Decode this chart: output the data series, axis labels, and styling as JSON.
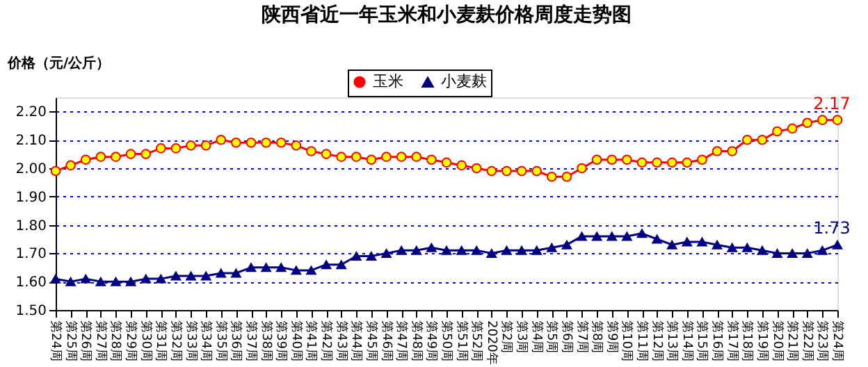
{
  "chart_data": {
    "type": "line",
    "title": "陕西省近一年玉米和小麦麸价格周度走势图",
    "ylabel": "价格（元/公斤）",
    "categories": [
      "第24周",
      "第25周",
      "第26周",
      "第27周",
      "第28周",
      "第29周",
      "第30周",
      "第31周",
      "第32周",
      "第33周",
      "第34周",
      "第35周",
      "第36周",
      "第37周",
      "第38周",
      "第39周",
      "第40周",
      "第41周",
      "第42周",
      "第43周",
      "第44周",
      "第45周",
      "第46周",
      "第47周",
      "第48周",
      "第49周",
      "第50周",
      "第51周",
      "第52周",
      "2020年",
      "第2周",
      "第3周",
      "第4周",
      "第5周",
      "第6周",
      "第7周",
      "第8周",
      "第9周",
      "第10周",
      "第11周",
      "第12周",
      "第13周",
      "第14周",
      "第15周",
      "第16周",
      "第17周",
      "第18周",
      "第19周",
      "第20周",
      "第21周",
      "第22周",
      "第23周",
      "第24周 "
    ],
    "series": [
      {
        "name": "玉米",
        "color": "#ff0000",
        "marker": "circle",
        "values": [
          1.99,
          2.01,
          2.03,
          2.04,
          2.04,
          2.05,
          2.05,
          2.07,
          2.07,
          2.08,
          2.08,
          2.1,
          2.09,
          2.09,
          2.09,
          2.09,
          2.08,
          2.06,
          2.05,
          2.04,
          2.04,
          2.03,
          2.04,
          2.04,
          2.04,
          2.03,
          2.02,
          2.01,
          2.0,
          1.99,
          1.99,
          1.99,
          1.99,
          1.97,
          1.97,
          2.0,
          2.03,
          2.03,
          2.03,
          2.02,
          2.02,
          2.02,
          2.02,
          2.03,
          2.06,
          2.06,
          2.1,
          2.1,
          2.13,
          2.14,
          2.16,
          2.17,
          2.17
        ],
        "value_labels": [
          null,
          null,
          null,
          null,
          null,
          null,
          null,
          null,
          null,
          null,
          null,
          null,
          null,
          null,
          null,
          null,
          null,
          null,
          null,
          null,
          null,
          null,
          null,
          null,
          null,
          null,
          null,
          null,
          null,
          null,
          null,
          null,
          null,
          null,
          null,
          null,
          null,
          null,
          null,
          null,
          null,
          null,
          null,
          null,
          null,
          null,
          null,
          null,
          null,
          null,
          null,
          null,
          "2.17"
        ]
      },
      {
        "name": "小麦麸",
        "color": "#000080",
        "marker": "triangle",
        "values": [
          1.61,
          1.6,
          1.61,
          1.6,
          1.6,
          1.6,
          1.61,
          1.61,
          1.62,
          1.62,
          1.62,
          1.63,
          1.63,
          1.65,
          1.65,
          1.65,
          1.64,
          1.64,
          1.66,
          1.66,
          1.69,
          1.69,
          1.7,
          1.71,
          1.71,
          1.72,
          1.71,
          1.71,
          1.71,
          1.7,
          1.71,
          1.71,
          1.71,
          1.72,
          1.73,
          1.76,
          1.76,
          1.76,
          1.76,
          1.77,
          1.75,
          1.73,
          1.74,
          1.74,
          1.73,
          1.72,
          1.72,
          1.71,
          1.7,
          1.7,
          1.7,
          1.71,
          1.73
        ],
        "value_labels": [
          null,
          null,
          null,
          null,
          null,
          null,
          null,
          null,
          null,
          null,
          null,
          null,
          null,
          null,
          null,
          null,
          null,
          null,
          null,
          null,
          null,
          null,
          null,
          null,
          null,
          null,
          null,
          null,
          null,
          null,
          null,
          null,
          null,
          null,
          null,
          null,
          null,
          null,
          null,
          null,
          null,
          null,
          null,
          null,
          null,
          null,
          null,
          null,
          null,
          null,
          null,
          null,
          "1.73"
        ]
      }
    ],
    "ylim": [
      1.5,
      2.25
    ],
    "yticks": [
      {
        "value": 1.5,
        "label": "1.50"
      },
      {
        "value": 1.6,
        "label": "1.60"
      },
      {
        "value": 1.7,
        "label": "1.70"
      },
      {
        "value": 1.8,
        "label": "1.80"
      },
      {
        "value": 1.9,
        "label": "1.90"
      },
      {
        "value": 2.0,
        "label": "2.00"
      },
      {
        "value": 2.1,
        "label": "2.10"
      },
      {
        "value": 2.2,
        "label": "2.20"
      }
    ],
    "grid": "y",
    "legend": "top",
    "line_style": "solid"
  }
}
